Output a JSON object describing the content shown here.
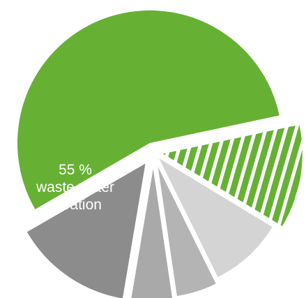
{
  "chart_data": {
    "type": "pie",
    "segments": [
      {
        "value": 55,
        "color": "#66b134",
        "pattern": "solid"
      },
      {
        "value": 12,
        "color": "#66b134",
        "pattern": "stripes"
      },
      {
        "value": 9,
        "color": "#d4d4d4",
        "pattern": "solid"
      },
      {
        "value": 5,
        "color": "#b4b4b4",
        "pattern": "solid"
      },
      {
        "value": 5,
        "color": "#a9a9a9",
        "pattern": "solid"
      },
      {
        "value": 14,
        "color": "#8c8c8c",
        "pattern": "solid"
      }
    ],
    "labels": {
      "main_value": "55 %",
      "main_line1": "waste water",
      "main_line2": "aeration"
    }
  }
}
